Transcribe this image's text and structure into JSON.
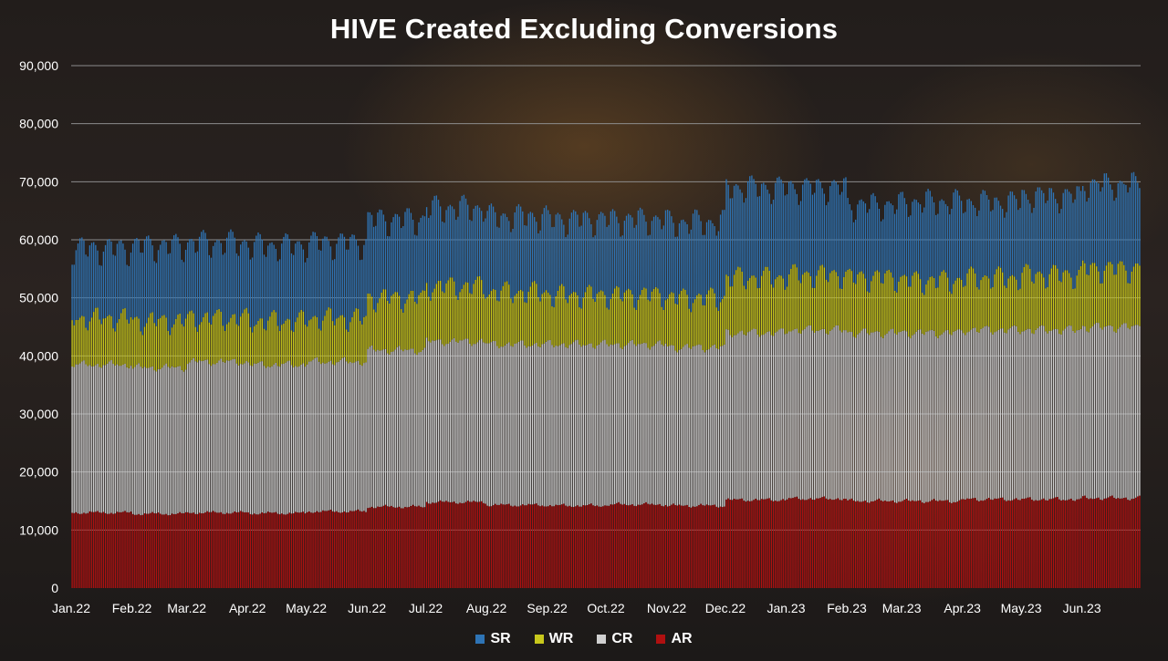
{
  "chart_data": {
    "type": "bar",
    "stacked": true,
    "title": "HIVE Created Excluding Conversions",
    "xlabel": "",
    "ylabel": "",
    "ylim": [
      0,
      90000
    ],
    "yticks": [
      "0",
      "10,000",
      "20,000",
      "30,000",
      "40,000",
      "50,000",
      "60,000",
      "70,000",
      "80,000",
      "90,000"
    ],
    "grid": true,
    "legend_position": "bottom",
    "x_range": [
      "2022-01-01",
      "2023-06-30"
    ],
    "x_tick_labels": [
      "Jan.22",
      "Feb.22",
      "Mar.22",
      "Apr.22",
      "May.22",
      "Jun.22",
      "Jul.22",
      "Aug.22",
      "Sep.22",
      "Oct.22",
      "Nov.22",
      "Dec.22",
      "Jan.23",
      "Feb.23",
      "Mar.23",
      "Apr.23",
      "May.23",
      "Jun.23"
    ],
    "granularity": "daily",
    "series_order_bottom_to_top": [
      "AR",
      "CR",
      "WR",
      "SR"
    ],
    "series": [
      {
        "name": "SR",
        "color": "#2e74b5",
        "monthly_approx_top": [
          58500,
          59000,
          59500,
          59000,
          59500,
          63500,
          65500,
          64000,
          63500,
          63500,
          63000,
          69000,
          69000,
          66000,
          66500,
          66500,
          67500,
          69500
        ]
      },
      {
        "name": "WR",
        "color": "#c8c81c",
        "monthly_approx_top": [
          46500,
          46000,
          46500,
          46000,
          46500,
          50000,
          52000,
          51000,
          50500,
          50500,
          50000,
          53500,
          54000,
          53500,
          53000,
          53500,
          54000,
          55000
        ]
      },
      {
        "name": "CR",
        "color": "#d0d0d0",
        "monthly_approx_top": [
          38500,
          38000,
          39000,
          38500,
          39000,
          41000,
          42500,
          42000,
          42000,
          42000,
          41500,
          44000,
          44500,
          44000,
          44000,
          44500,
          44500,
          45000
        ]
      },
      {
        "name": "AR",
        "color": "#b01010",
        "monthly_approx_top": [
          13000,
          12800,
          13000,
          12900,
          13200,
          14000,
          14800,
          14300,
          14200,
          14400,
          14200,
          15200,
          15400,
          15000,
          15000,
          15300,
          15300,
          15500
        ]
      }
    ]
  }
}
